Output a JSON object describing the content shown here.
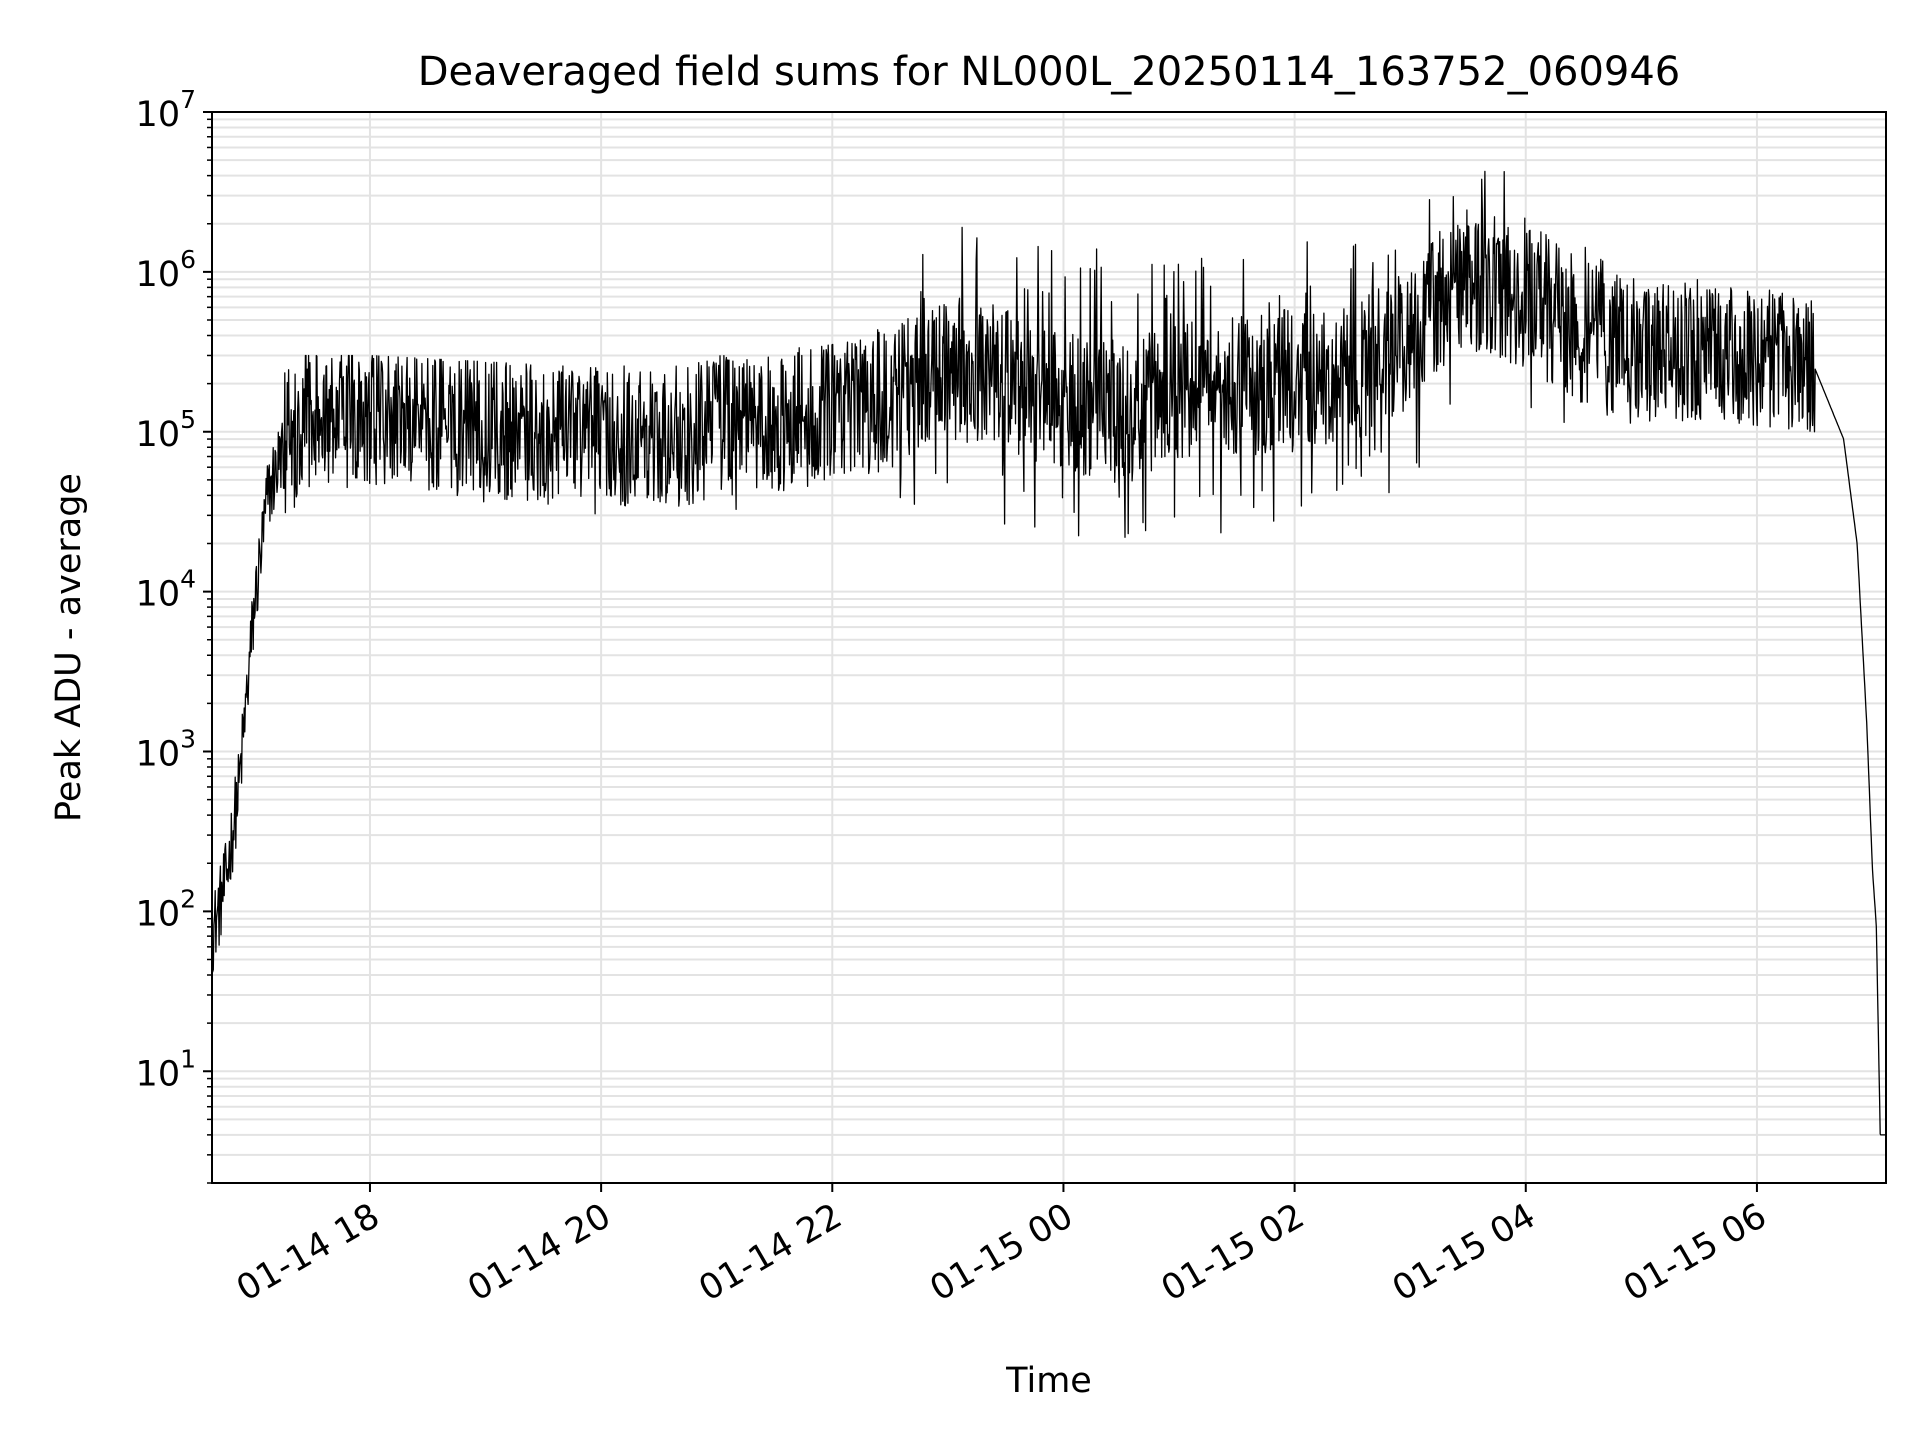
{
  "chart_data": {
    "type": "line",
    "title": "Deaveraged field sums for NL000L_20250114_163752_060946",
    "xlabel": "Time",
    "ylabel": "Peak ADU - average",
    "y_scale": "log",
    "ylim": [
      2,
      10000000
    ],
    "xlim": [
      "2025-01-14 16:38",
      "2025-01-15 07:07"
    ],
    "grid": true,
    "line_color": "#000000",
    "grid_color": "#e3e3e3",
    "x_ticks": [
      {
        "t": "2025-01-14 18:00",
        "label": "01-14 18"
      },
      {
        "t": "2025-01-14 20:00",
        "label": "01-14 20"
      },
      {
        "t": "2025-01-14 22:00",
        "label": "01-14 22"
      },
      {
        "t": "2025-01-15 00:00",
        "label": "01-15 00"
      },
      {
        "t": "2025-01-15 02:00",
        "label": "01-15 02"
      },
      {
        "t": "2025-01-15 04:00",
        "label": "01-15 04"
      },
      {
        "t": "2025-01-15 06:00",
        "label": "01-15 06"
      }
    ],
    "y_ticks": [
      {
        "v": 10,
        "base": "10",
        "exp": "1"
      },
      {
        "v": 100,
        "base": "10",
        "exp": "2"
      },
      {
        "v": 1000,
        "base": "10",
        "exp": "3"
      },
      {
        "v": 10000,
        "base": "10",
        "exp": "4"
      },
      {
        "v": 100000,
        "base": "10",
        "exp": "5"
      },
      {
        "v": 1000000,
        "base": "10",
        "exp": "6"
      },
      {
        "v": 10000000,
        "base": "10",
        "exp": "7"
      }
    ],
    "series": [
      {
        "name": "",
        "x": [
          "2025-01-14 16:38",
          "2025-01-14 16:45",
          "2025-01-14 16:52",
          "2025-01-14 17:00",
          "2025-01-14 17:07",
          "2025-01-14 17:15",
          "2025-01-14 17:22",
          "2025-01-14 17:30",
          "2025-01-14 17:45",
          "2025-01-14 18:00",
          "2025-01-14 18:30",
          "2025-01-14 19:00",
          "2025-01-14 19:30",
          "2025-01-14 20:00",
          "2025-01-14 20:30",
          "2025-01-14 21:00",
          "2025-01-14 21:30",
          "2025-01-14 22:00",
          "2025-01-14 22:30",
          "2025-01-14 23:00",
          "2025-01-14 23:30",
          "2025-01-15 00:00",
          "2025-01-15 00:30",
          "2025-01-15 01:00",
          "2025-01-15 01:30",
          "2025-01-15 02:00",
          "2025-01-15 02:30",
          "2025-01-15 03:00",
          "2025-01-15 03:30",
          "2025-01-15 04:00",
          "2025-01-15 04:30",
          "2025-01-15 05:00",
          "2025-01-15 05:30",
          "2025-01-15 06:00",
          "2025-01-15 06:30",
          "2025-01-15 06:45",
          "2025-01-15 06:52",
          "2025-01-15 06:57",
          "2025-01-15 07:00",
          "2025-01-15 07:02",
          "2025-01-15 07:04",
          "2025-01-15 07:07"
        ],
        "values": [
          70,
          150,
          600,
          8000,
          40000,
          80000,
          110000,
          130000,
          140000,
          130000,
          120000,
          110000,
          95000,
          100000,
          85000,
          110000,
          120000,
          140000,
          160000,
          250000,
          220000,
          150000,
          130000,
          170000,
          190000,
          210000,
          230000,
          400000,
          900000,
          700000,
          420000,
          330000,
          320000,
          300000,
          250000,
          90000,
          20000,
          1500,
          180,
          80,
          4,
          4
        ]
      }
    ],
    "noise_envelope": {
      "x": [
        "2025-01-14 17:15",
        "2025-01-14 18:00",
        "2025-01-14 20:00",
        "2025-01-14 21:00",
        "2025-01-14 22:00",
        "2025-01-14 23:00",
        "2025-01-15 00:00",
        "2025-01-15 01:00",
        "2025-01-15 02:00",
        "2025-01-15 03:00",
        "2025-01-15 03:50",
        "2025-01-15 04:30",
        "2025-01-15 05:30",
        "2025-01-15 06:30"
      ],
      "upper": [
        300000,
        300000,
        250000,
        300000,
        350000,
        2000000,
        1500000,
        1200000,
        1500000,
        2500000,
        5500000,
        1500000,
        900000,
        700000
      ],
      "lower": [
        30000,
        40000,
        30000,
        30000,
        50000,
        30000,
        20000,
        20000,
        25000,
        40000,
        150000,
        100000,
        120000,
        100000
      ]
    }
  }
}
